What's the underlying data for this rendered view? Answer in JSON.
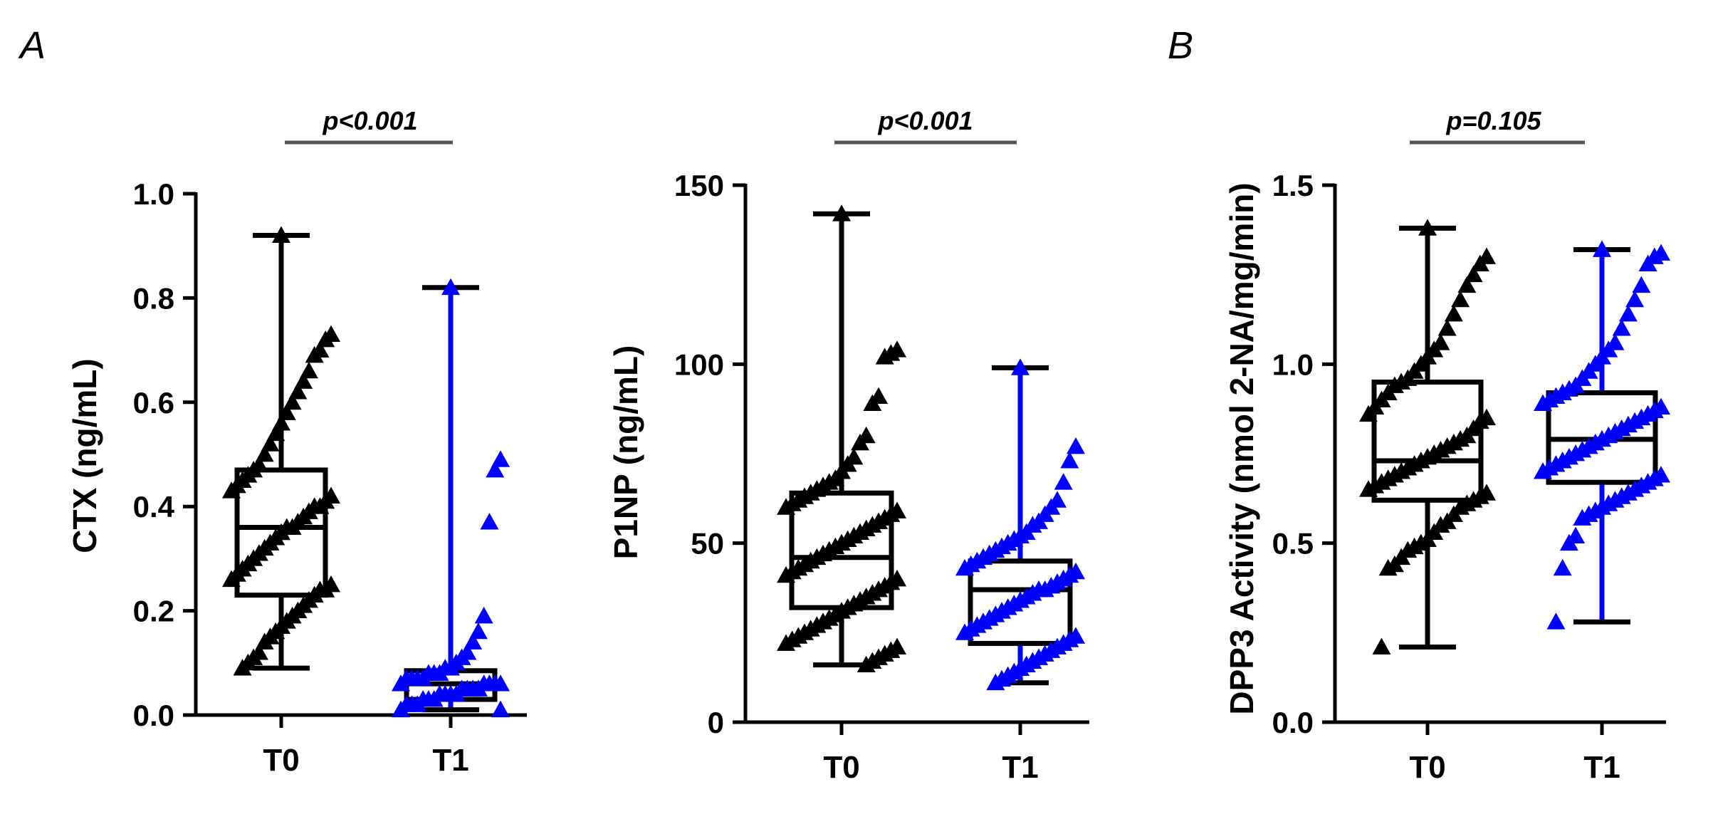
{
  "panel_letters": {
    "a": "A",
    "b": "B"
  },
  "colors": {
    "T0": "#000000",
    "T1": "#0000ff"
  },
  "chart_data": [
    {
      "type": "box",
      "panel": "A",
      "title": "",
      "ylabel": "CTX (ng/mL)",
      "xlabel": "",
      "categories": [
        "T0",
        "T1"
      ],
      "ylim": [
        0,
        1.0
      ],
      "yticks": [
        0.0,
        0.2,
        0.4,
        0.6,
        0.8,
        1.0
      ],
      "ytick_labels": [
        "0.0",
        "0.2",
        "0.4",
        "0.6",
        "0.8",
        "1.0"
      ],
      "p_value": "p<0.001",
      "series": [
        {
          "name": "T0",
          "min": 0.09,
          "q1": 0.23,
          "median": 0.36,
          "q3": 0.47,
          "max": 0.92,
          "points": [
            0.92,
            0.73,
            0.72,
            0.7,
            0.69,
            0.66,
            0.64,
            0.62,
            0.6,
            0.58,
            0.56,
            0.54,
            0.52,
            0.5,
            0.48,
            0.47,
            0.46,
            0.45,
            0.44,
            0.43,
            0.42,
            0.41,
            0.4,
            0.4,
            0.39,
            0.38,
            0.37,
            0.36,
            0.36,
            0.35,
            0.34,
            0.33,
            0.32,
            0.31,
            0.3,
            0.29,
            0.28,
            0.27,
            0.26,
            0.25,
            0.24,
            0.24,
            0.23,
            0.22,
            0.21,
            0.2,
            0.19,
            0.18,
            0.17,
            0.16,
            0.15,
            0.14,
            0.12,
            0.11,
            0.1,
            0.09
          ]
        },
        {
          "name": "T1",
          "min": 0.01,
          "q1": 0.03,
          "median": 0.06,
          "q3": 0.085,
          "max": 0.82,
          "points": [
            0.82,
            0.49,
            0.47,
            0.37,
            0.19,
            0.16,
            0.14,
            0.12,
            0.11,
            0.1,
            0.09,
            0.09,
            0.08,
            0.08,
            0.08,
            0.07,
            0.07,
            0.07,
            0.07,
            0.06,
            0.06,
            0.06,
            0.06,
            0.06,
            0.05,
            0.05,
            0.05,
            0.05,
            0.04,
            0.04,
            0.04,
            0.04,
            0.03,
            0.03,
            0.03,
            0.02,
            0.02,
            0.02,
            0.01,
            0.01
          ]
        }
      ]
    },
    {
      "type": "box",
      "panel": "A",
      "title": "",
      "ylabel": "P1NP (ng/mL)",
      "xlabel": "",
      "categories": [
        "T0",
        "T1"
      ],
      "ylim": [
        0,
        150
      ],
      "yticks": [
        0,
        50,
        100,
        150
      ],
      "ytick_labels": [
        "0",
        "50",
        "100",
        "150"
      ],
      "p_value": "p<0.001",
      "series": [
        {
          "name": "T0",
          "min": 16,
          "q1": 32,
          "median": 46,
          "q3": 64,
          "max": 142,
          "points": [
            142,
            104,
            103,
            102,
            91,
            89,
            80,
            78,
            74,
            72,
            70,
            68,
            67,
            66,
            65,
            64,
            63,
            62,
            61,
            60,
            59,
            58,
            57,
            56,
            55,
            54,
            53,
            52,
            51,
            50,
            49,
            48,
            47,
            46,
            45,
            44,
            43,
            42,
            41,
            40,
            39,
            38,
            37,
            36,
            35,
            34,
            33,
            32,
            31,
            30,
            29,
            28,
            27,
            26,
            25,
            24,
            23,
            22,
            21,
            20,
            19,
            18,
            17,
            16
          ]
        },
        {
          "name": "T1",
          "min": 11,
          "q1": 22,
          "median": 37,
          "q3": 45,
          "max": 99,
          "points": [
            99,
            77,
            73,
            67,
            62,
            60,
            58,
            56,
            55,
            53,
            52,
            51,
            50,
            49,
            48,
            47,
            46,
            45,
            44,
            43,
            42,
            41,
            40,
            39,
            38,
            37,
            37,
            36,
            35,
            34,
            33,
            32,
            31,
            30,
            29,
            28,
            27,
            26,
            25,
            24,
            23,
            22,
            21,
            20,
            19,
            18,
            17,
            16,
            15,
            14,
            13,
            12,
            11
          ]
        }
      ]
    },
    {
      "type": "box",
      "panel": "B",
      "title": "",
      "ylabel": "DPP3 Activity (nmol 2-NA/mg/min)",
      "xlabel": "",
      "categories": [
        "T0",
        "T1"
      ],
      "ylim": [
        0,
        1.5
      ],
      "yticks": [
        0.0,
        0.5,
        1.0,
        1.5
      ],
      "ytick_labels": [
        "0.0",
        "0.5",
        "1.0",
        "1.5"
      ],
      "p_value": "p=0.105",
      "series": [
        {
          "name": "T0",
          "min": 0.21,
          "q1": 0.62,
          "median": 0.73,
          "q3": 0.95,
          "max": 1.38,
          "points": [
            1.38,
            1.3,
            1.28,
            1.25,
            1.22,
            1.18,
            1.14,
            1.1,
            1.06,
            1.04,
            1.02,
            1.0,
            0.98,
            0.96,
            0.95,
            0.94,
            0.92,
            0.9,
            0.88,
            0.86,
            0.85,
            0.84,
            0.82,
            0.8,
            0.79,
            0.78,
            0.77,
            0.76,
            0.75,
            0.74,
            0.73,
            0.72,
            0.71,
            0.7,
            0.69,
            0.68,
            0.67,
            0.66,
            0.65,
            0.64,
            0.63,
            0.62,
            0.61,
            0.6,
            0.58,
            0.56,
            0.55,
            0.53,
            0.51,
            0.5,
            0.49,
            0.48,
            0.46,
            0.44,
            0.43,
            0.21
          ]
        },
        {
          "name": "T1",
          "min": 0.28,
          "q1": 0.67,
          "median": 0.79,
          "q3": 0.92,
          "max": 1.32,
          "points": [
            1.32,
            1.31,
            1.3,
            1.28,
            1.22,
            1.18,
            1.14,
            1.1,
            1.06,
            1.04,
            1.02,
            1.0,
            0.98,
            0.96,
            0.94,
            0.93,
            0.92,
            0.91,
            0.9,
            0.89,
            0.88,
            0.87,
            0.86,
            0.85,
            0.84,
            0.83,
            0.82,
            0.81,
            0.8,
            0.79,
            0.78,
            0.77,
            0.76,
            0.75,
            0.74,
            0.73,
            0.72,
            0.71,
            0.7,
            0.69,
            0.68,
            0.67,
            0.66,
            0.65,
            0.64,
            0.63,
            0.62,
            0.61,
            0.6,
            0.59,
            0.58,
            0.57,
            0.52,
            0.5,
            0.43,
            0.28
          ]
        }
      ]
    }
  ]
}
